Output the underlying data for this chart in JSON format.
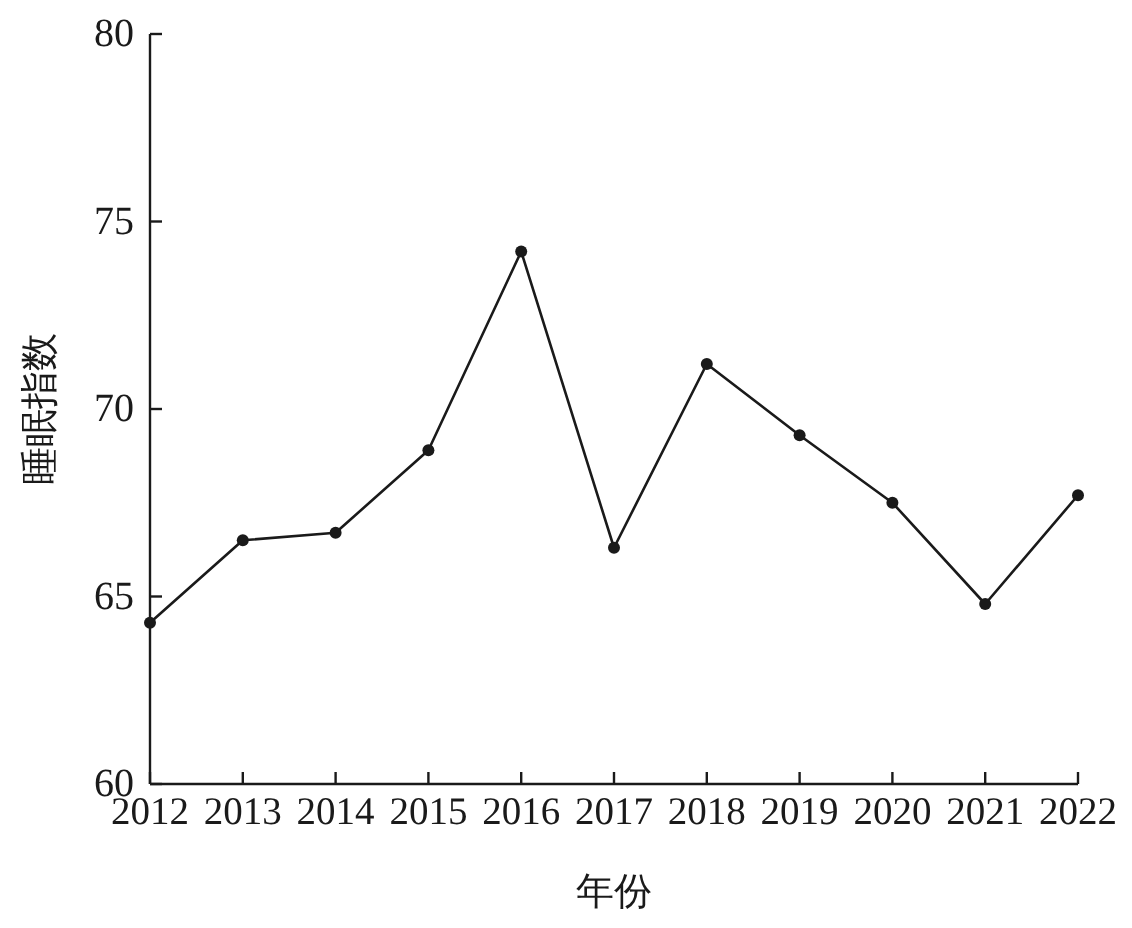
{
  "chart_data": {
    "type": "line",
    "xlabel": "年份",
    "ylabel": "睡眠指数",
    "categories": [
      "2012",
      "2013",
      "2014",
      "2015",
      "2016",
      "2017",
      "2018",
      "2019",
      "2020",
      "2021",
      "2022"
    ],
    "series": [
      {
        "color": "#1a1a1a",
        "values": [
          64.3,
          66.5,
          66.7,
          68.9,
          74.2,
          66.3,
          71.2,
          69.3,
          67.5,
          64.8,
          67.7
        ]
      }
    ],
    "ylim": [
      60,
      80
    ],
    "yticks": [
      60,
      65,
      70,
      75,
      80
    ],
    "marker": "circle",
    "line_style": "solid",
    "grid": false
  }
}
